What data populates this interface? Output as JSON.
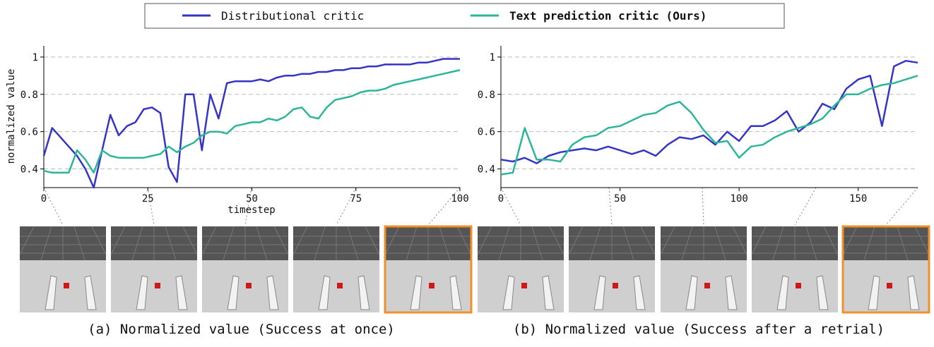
{
  "chart_data": [
    {
      "type": "line",
      "y_label": "normalized value",
      "x_label": "timestep",
      "caption": "(a) Normalized value (Success at once)",
      "xlim": [
        0,
        100
      ],
      "xticks": [
        0,
        25,
        50,
        75,
        100
      ],
      "ylim": [
        0.3,
        1.06
      ],
      "yticks": [
        0.4,
        0.6,
        0.8,
        1.0
      ],
      "grid": true,
      "x": [
        0,
        2,
        4,
        6,
        8,
        10,
        12,
        14,
        16,
        18,
        20,
        22,
        24,
        26,
        28,
        30,
        32,
        34,
        36,
        38,
        40,
        42,
        44,
        46,
        48,
        50,
        52,
        54,
        56,
        58,
        60,
        62,
        64,
        66,
        68,
        70,
        72,
        74,
        76,
        78,
        80,
        82,
        84,
        86,
        88,
        90,
        92,
        94,
        96,
        98,
        100
      ],
      "series": [
        {
          "name": "Distributional critic",
          "color": "#3535c4",
          "values": [
            0.47,
            0.62,
            0.57,
            0.52,
            0.47,
            0.4,
            0.3,
            0.5,
            0.69,
            0.58,
            0.63,
            0.65,
            0.72,
            0.73,
            0.7,
            0.41,
            0.33,
            0.8,
            0.8,
            0.5,
            0.8,
            0.67,
            0.86,
            0.87,
            0.87,
            0.87,
            0.88,
            0.87,
            0.89,
            0.9,
            0.9,
            0.91,
            0.91,
            0.92,
            0.92,
            0.93,
            0.93,
            0.94,
            0.94,
            0.95,
            0.95,
            0.96,
            0.96,
            0.96,
            0.96,
            0.97,
            0.97,
            0.98,
            0.99,
            0.99,
            0.99
          ]
        },
        {
          "name": "Text prediction critic (Ours)",
          "color": "#2db59a",
          "values": [
            0.39,
            0.38,
            0.38,
            0.38,
            0.5,
            0.45,
            0.38,
            0.5,
            0.47,
            0.46,
            0.46,
            0.46,
            0.46,
            0.47,
            0.48,
            0.52,
            0.49,
            0.52,
            0.54,
            0.58,
            0.6,
            0.6,
            0.59,
            0.63,
            0.64,
            0.65,
            0.65,
            0.67,
            0.66,
            0.68,
            0.72,
            0.73,
            0.68,
            0.67,
            0.73,
            0.77,
            0.78,
            0.79,
            0.81,
            0.82,
            0.82,
            0.83,
            0.85,
            0.86,
            0.87,
            0.88,
            0.89,
            0.9,
            0.91,
            0.92,
            0.93
          ]
        }
      ]
    },
    {
      "type": "line",
      "caption": "(b) Normalized value (Success after a retrial)",
      "xlim": [
        0,
        175
      ],
      "xticks": [
        0,
        50,
        100,
        150
      ],
      "ylim": [
        0.3,
        1.06
      ],
      "yticks": [
        0.4,
        0.6,
        0.8,
        1.0
      ],
      "grid": true,
      "x": [
        0,
        5,
        10,
        15,
        20,
        25,
        30,
        35,
        40,
        45,
        50,
        55,
        60,
        65,
        70,
        75,
        80,
        85,
        90,
        95,
        100,
        105,
        110,
        115,
        120,
        125,
        130,
        135,
        140,
        145,
        150,
        155,
        160,
        165,
        170,
        175
      ],
      "series": [
        {
          "color": "#3535c4",
          "values": [
            0.45,
            0.44,
            0.46,
            0.43,
            0.47,
            0.49,
            0.5,
            0.51,
            0.5,
            0.52,
            0.5,
            0.48,
            0.5,
            0.47,
            0.53,
            0.57,
            0.56,
            0.58,
            0.53,
            0.6,
            0.55,
            0.63,
            0.63,
            0.66,
            0.71,
            0.6,
            0.65,
            0.75,
            0.72,
            0.83,
            0.88,
            0.9,
            0.63,
            0.95,
            0.98,
            0.97
          ]
        },
        {
          "color": "#2db59a",
          "values": [
            0.37,
            0.38,
            0.62,
            0.45,
            0.45,
            0.44,
            0.53,
            0.57,
            0.58,
            0.62,
            0.63,
            0.66,
            0.69,
            0.7,
            0.74,
            0.76,
            0.7,
            0.61,
            0.54,
            0.55,
            0.46,
            0.52,
            0.53,
            0.57,
            0.6,
            0.62,
            0.64,
            0.67,
            0.74,
            0.8,
            0.8,
            0.83,
            0.85,
            0.86,
            0.88,
            0.9
          ]
        }
      ]
    }
  ]
}
